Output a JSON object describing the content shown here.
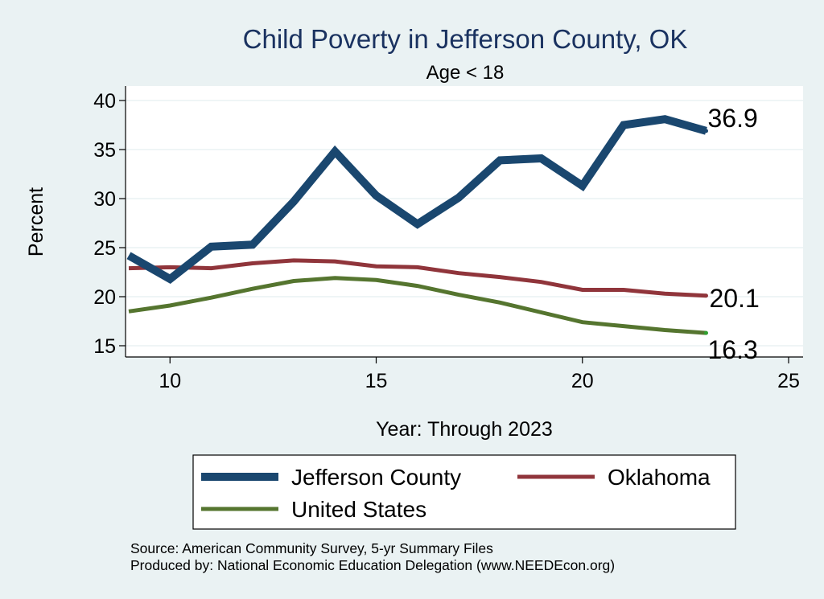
{
  "chart_data": {
    "type": "line",
    "title": "Child Poverty in Jefferson County, OK",
    "subtitle": "Age < 18",
    "xlabel": "Year: Through 2023",
    "ylabel": "Percent",
    "xlim": [
      9,
      25
    ],
    "ylim": [
      15,
      40
    ],
    "x_ticks": [
      10,
      15,
      20,
      25
    ],
    "y_ticks": [
      15,
      20,
      25,
      30,
      35,
      40
    ],
    "grid": true,
    "legend_position": "bottom",
    "x": [
      9,
      10,
      11,
      12,
      13,
      14,
      15,
      16,
      17,
      18,
      19,
      20,
      21,
      22,
      23
    ],
    "series": [
      {
        "name": "Jefferson County",
        "color": "#1a476f",
        "end_label": "36.9",
        "values": [
          24.2,
          21.8,
          25.1,
          25.3,
          29.7,
          34.8,
          30.3,
          27.4,
          30.1,
          33.9,
          34.1,
          31.3,
          37.5,
          38.1,
          36.9
        ]
      },
      {
        "name": "Oklahoma",
        "color": "#90353b",
        "end_label": "20.1",
        "values": [
          22.9,
          23.0,
          22.9,
          23.4,
          23.7,
          23.6,
          23.1,
          23.0,
          22.4,
          22.0,
          21.5,
          20.7,
          20.7,
          20.3,
          20.1
        ]
      },
      {
        "name": "United States",
        "color": "#55752f",
        "end_label": "16.3",
        "values": [
          18.5,
          19.1,
          19.9,
          20.8,
          21.6,
          21.9,
          21.7,
          21.1,
          20.2,
          19.4,
          18.4,
          17.4,
          17.0,
          16.6,
          16.3
        ]
      }
    ],
    "source_lines": [
      "Source: American Community Survey, 5-yr Summary Files",
      "Produced by: National Economic Education Delegation (www.NEEDEcon.org)"
    ]
  }
}
